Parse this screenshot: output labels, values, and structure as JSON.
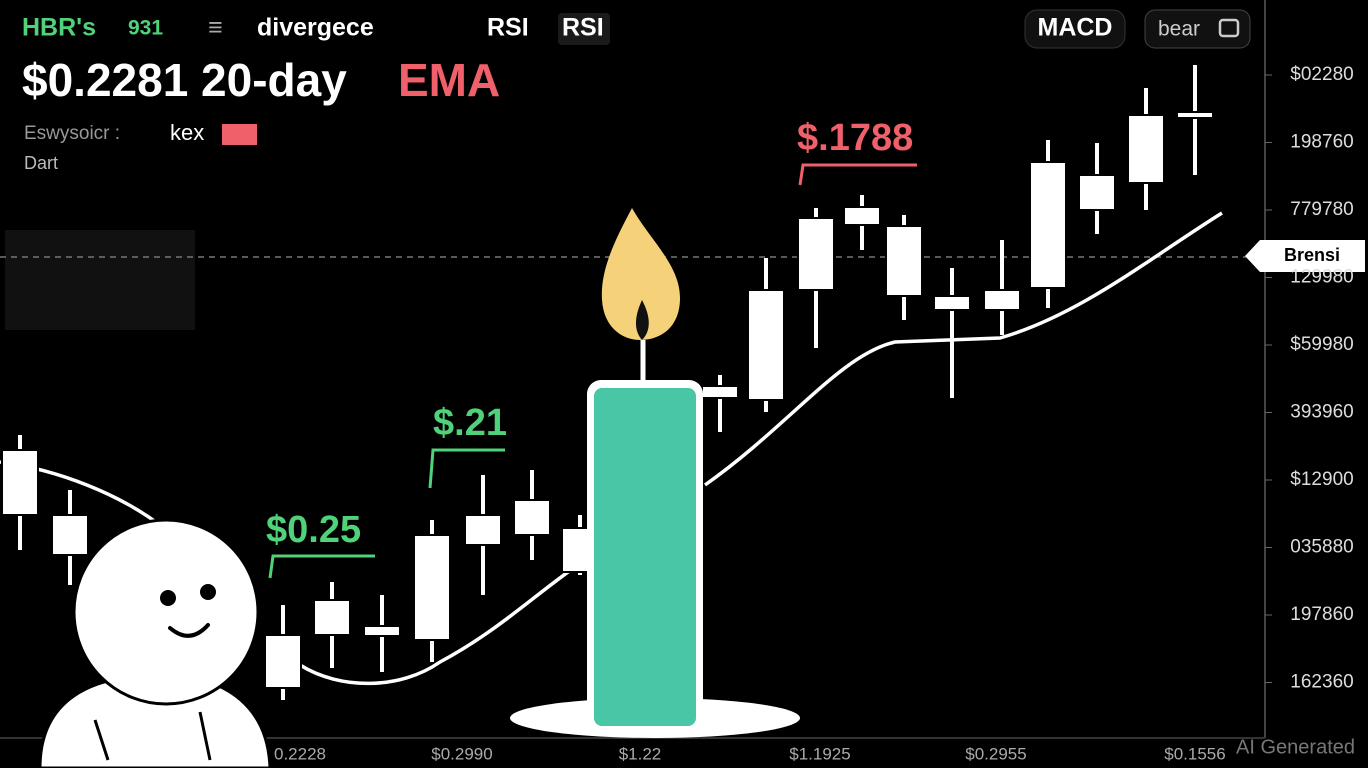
{
  "header": {
    "ticker": "HBR's",
    "ticker_value": "931",
    "tabs": [
      "divergece",
      "RSI",
      "RSI"
    ],
    "buttons": [
      "MACD",
      "bear"
    ]
  },
  "headline": {
    "text": "$0.2281 20-day",
    "accent": "EMA"
  },
  "info": {
    "label": "Eswysoicr :",
    "exchange": "kex",
    "caption": "Dart"
  },
  "annotations": [
    "$.1788",
    "$.21",
    "$0.25"
  ],
  "price_tag": "Brensi",
  "y_axis_labels": [
    "$02280",
    "198760",
    "779780",
    "129980",
    "$59980",
    "393960",
    "$12900",
    "035880",
    "197860",
    "162360"
  ],
  "x_axis_labels": [
    "0.2228",
    "$0.2990",
    "$1.22",
    "$1.1925",
    "$0.2955",
    "$0.1556"
  ],
  "watermark": "AI Generated"
}
